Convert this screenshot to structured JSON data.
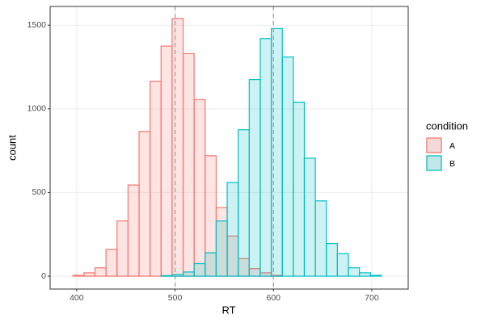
{
  "chart_data": {
    "type": "histogram",
    "x_label": "RT",
    "y_label": "count",
    "legend_title": "condition",
    "legend_position": "right",
    "bins": [
      385,
      396.2,
      407.4,
      418.6,
      429.8,
      441,
      452.2,
      463.4,
      474.6,
      485.8,
      497,
      508.2,
      519.4,
      530.6,
      541.8,
      553,
      564.2,
      575.4,
      586.6,
      597.8,
      609,
      620.2,
      631.4,
      642.6,
      653.8,
      665,
      676.2,
      687.4,
      698.6,
      709.8,
      721
    ],
    "series": [
      {
        "name": "A",
        "color": "#F8766D",
        "fill": "#fbd9d5",
        "values": [
          0,
          5,
          20,
          50,
          160,
          330,
          545,
          865,
          1165,
          1375,
          1540,
          1330,
          1055,
          720,
          410,
          240,
          105,
          45,
          20,
          5,
          0,
          0,
          0,
          0,
          0,
          0,
          0,
          0,
          0,
          0
        ]
      },
      {
        "name": "B",
        "color": "#00BFC4",
        "fill": "#c4eced",
        "values": [
          0,
          0,
          0,
          0,
          0,
          0,
          0,
          0,
          0,
          3,
          10,
          25,
          75,
          140,
          330,
          560,
          875,
          1175,
          1420,
          1480,
          1310,
          1040,
          705,
          450,
          195,
          135,
          50,
          20,
          5,
          0
        ]
      }
    ],
    "vlines": [
      500,
      600
    ],
    "xlim": [
      373,
      737
    ],
    "ylim": [
      -77,
      1612
    ],
    "xticks": [
      400,
      500,
      600,
      700
    ],
    "yticks": [
      0,
      500,
      1000,
      1500
    ],
    "grid": true
  }
}
